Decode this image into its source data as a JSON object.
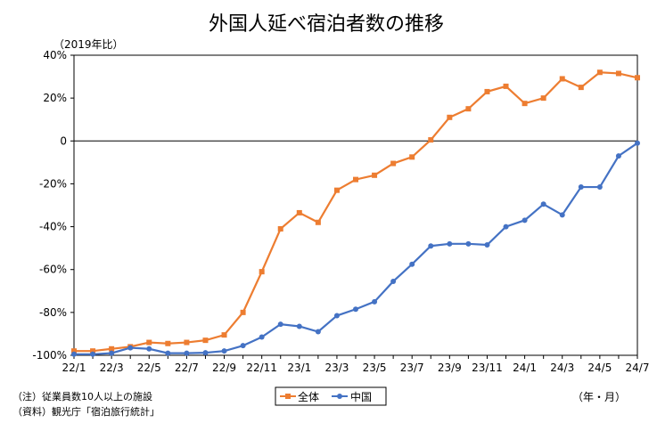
{
  "chart_data": {
    "type": "line",
    "title": "外国人延べ宿泊者数の推移",
    "unit_label": "（2019年比）",
    "xlabel_unit": "（年・月）",
    "note": "（注）従業員数10人以上の施設",
    "source": "（資料）観光庁「宿泊旅行統計」",
    "ylim": [
      -100,
      40
    ],
    "y_ticks": [
      40,
      20,
      0,
      -20,
      -40,
      -60,
      -80,
      -100
    ],
    "y_tick_labels": [
      "40%",
      "20%",
      "0",
      "-20%",
      "-40%",
      "-60%",
      "-80%",
      "-100%"
    ],
    "x_tick_labels": [
      "22/1",
      "22/3",
      "22/5",
      "22/7",
      "22/9",
      "22/11",
      "23/1",
      "23/3",
      "23/5",
      "23/7",
      "23/9",
      "23/11",
      "24/1",
      "24/3",
      "24/5",
      "24/7"
    ],
    "categories": [
      "22/1",
      "22/2",
      "22/3",
      "22/4",
      "22/5",
      "22/6",
      "22/7",
      "22/8",
      "22/9",
      "22/10",
      "22/11",
      "22/12",
      "23/1",
      "23/2",
      "23/3",
      "23/4",
      "23/5",
      "23/6",
      "23/7",
      "23/8",
      "23/9",
      "23/10",
      "23/11",
      "23/12",
      "24/1",
      "24/2",
      "24/3",
      "24/4",
      "24/5",
      "24/6",
      "24/7"
    ],
    "legend_position": "bottom-center",
    "series": [
      {
        "name": "全体",
        "color": "#ED7D31",
        "marker": "square",
        "values": [
          -98,
          -98,
          -97,
          -96,
          -94,
          -94.5,
          -94,
          -93,
          -90.5,
          -80,
          -61,
          -41,
          -33.5,
          -38,
          -23,
          -18,
          -16,
          -10.5,
          -7.5,
          0.5,
          11,
          15,
          23,
          25.5,
          17.5,
          20,
          29,
          25,
          32,
          31.5,
          29.5
        ]
      },
      {
        "name": "中国",
        "color": "#4472C4",
        "marker": "circle",
        "values": [
          -99.5,
          -99.5,
          -99,
          -96.5,
          -97,
          -99,
          -99,
          -98.8,
          -98,
          -95.5,
          -91.5,
          -85.5,
          -86.5,
          -89,
          -81.5,
          -78.5,
          -75,
          -65.5,
          -57.5,
          -49,
          -48,
          -48,
          -48.5,
          -40,
          -37,
          -29.5,
          -34.5,
          -21.5,
          -21.5,
          -7,
          -1
        ]
      }
    ]
  }
}
